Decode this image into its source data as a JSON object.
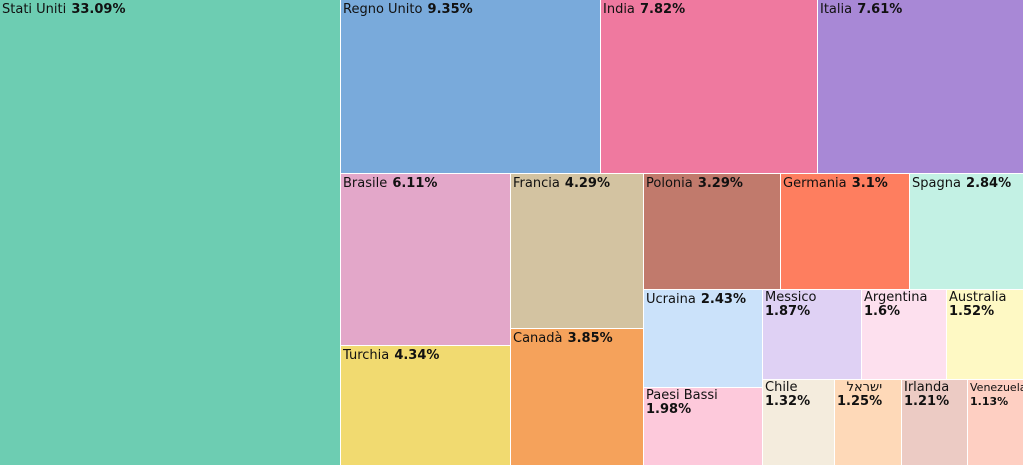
{
  "chart_data": {
    "type": "treemap",
    "title": "",
    "tiles": [
      {
        "name": "Stati Uniti",
        "value": "33.09%",
        "color": "#6dcdb2"
      },
      {
        "name": "Regno Unito",
        "value": "9.35%",
        "color": "#79aadb"
      },
      {
        "name": "India",
        "value": "7.82%",
        "color": "#ef799f"
      },
      {
        "name": "Italia",
        "value": "7.61%",
        "color": "#a888d6"
      },
      {
        "name": "Brasile",
        "value": "6.11%",
        "color": "#e3a7c9"
      },
      {
        "name": "Francia",
        "value": "4.29%",
        "color": "#d3c3a1"
      },
      {
        "name": "Polonia",
        "value": "3.29%",
        "color": "#c17a6c"
      },
      {
        "name": "Germania",
        "value": "3.1%",
        "color": "#fe7e5f"
      },
      {
        "name": "Spagna",
        "value": "2.84%",
        "color": "#c3f1e4"
      },
      {
        "name": "Turchia",
        "value": "4.34%",
        "color": "#f1da70"
      },
      {
        "name": "Canadà",
        "value": "3.85%",
        "color": "#f5a25b"
      },
      {
        "name": "Ucraina",
        "value": "2.43%",
        "color": "#cbe2fa"
      },
      {
        "name": "Messico",
        "value": "1.87%",
        "color": "#dfd1f4"
      },
      {
        "name": "Argentina",
        "value": "1.6%",
        "color": "#fde0ee"
      },
      {
        "name": "Australia",
        "value": "1.52%",
        "color": "#fef9c4"
      },
      {
        "name": "Paesi Bassi",
        "value": "1.98%",
        "color": "#fdc9db"
      },
      {
        "name": "Chile",
        "value": "1.32%",
        "color": "#f4ecdd"
      },
      {
        "name": "ישראל",
        "value": "1.25%",
        "color": "#fed9b8"
      },
      {
        "name": "Irlanda",
        "value": "1.21%",
        "color": "#eccbc4"
      },
      {
        "name": "Venezuela",
        "value": "1.13%",
        "color": "#fecfc2"
      }
    ]
  }
}
